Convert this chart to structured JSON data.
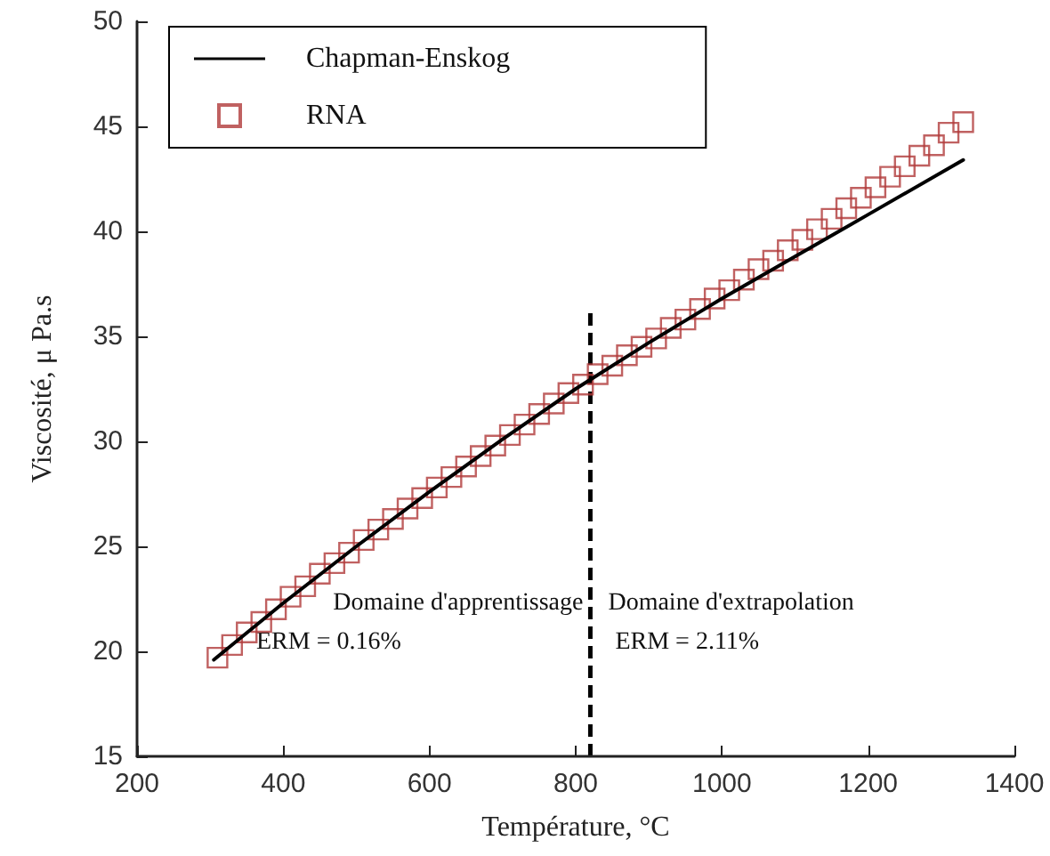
{
  "chart_data": {
    "type": "line",
    "xlabel": "Température, °C",
    "ylabel": "Viscosité, μ Pa.s",
    "xlim": [
      200,
      1400
    ],
    "xticks": [
      200,
      400,
      600,
      800,
      1000,
      1200,
      1400
    ],
    "ylim": [
      15,
      50
    ],
    "yticks": [
      15,
      20,
      25,
      30,
      35,
      40,
      45,
      50
    ],
    "grid": false,
    "legend": "top left",
    "series": [
      {
        "name": "Chapman-Enskog",
        "color": "#000000",
        "marker": "none",
        "line_style": "solid",
        "x": [
          305,
          400,
          500,
          600,
          700,
          800,
          900,
          1000,
          1100,
          1200,
          1330
        ],
        "values": [
          19.6,
          22.3,
          25.0,
          27.6,
          30.1,
          32.5,
          34.7,
          36.8,
          38.8,
          40.8,
          43.4
        ]
      },
      {
        "name": "RNA",
        "type": "scatter",
        "color": "#b03a3a",
        "marker": "square",
        "x": [
          310,
          330,
          350,
          370,
          390,
          410,
          430,
          450,
          470,
          490,
          510,
          530,
          550,
          570,
          590,
          610,
          630,
          650,
          670,
          690,
          710,
          730,
          750,
          770,
          790,
          810,
          830,
          850,
          870,
          890,
          910,
          930,
          950,
          970,
          990,
          1010,
          1030,
          1050,
          1070,
          1090,
          1110,
          1130,
          1150,
          1170,
          1190,
          1210,
          1230,
          1250,
          1270,
          1290,
          1310,
          1330
        ],
        "values": [
          19.7,
          20.3,
          20.9,
          21.4,
          22.0,
          22.6,
          23.1,
          23.7,
          24.2,
          24.7,
          25.3,
          25.8,
          26.3,
          26.8,
          27.3,
          27.8,
          28.3,
          28.8,
          29.3,
          29.8,
          30.3,
          30.8,
          31.3,
          31.8,
          32.3,
          32.7,
          33.2,
          33.6,
          34.1,
          34.5,
          34.9,
          35.4,
          35.8,
          36.3,
          36.8,
          37.2,
          37.7,
          38.2,
          38.6,
          39.1,
          39.6,
          40.1,
          40.6,
          41.1,
          41.6,
          42.1,
          42.6,
          43.1,
          43.6,
          44.1,
          44.7,
          45.2
        ]
      }
    ],
    "ref_lines": [
      {
        "axis": "x",
        "value": 820,
        "color": "#000000",
        "line_style": "dashed"
      }
    ],
    "annotations": [
      "Domaine d'apprentissage",
      "ERM = 0.16%",
      "Domaine d'extrapolation",
      "ERM = 2.11%"
    ]
  }
}
